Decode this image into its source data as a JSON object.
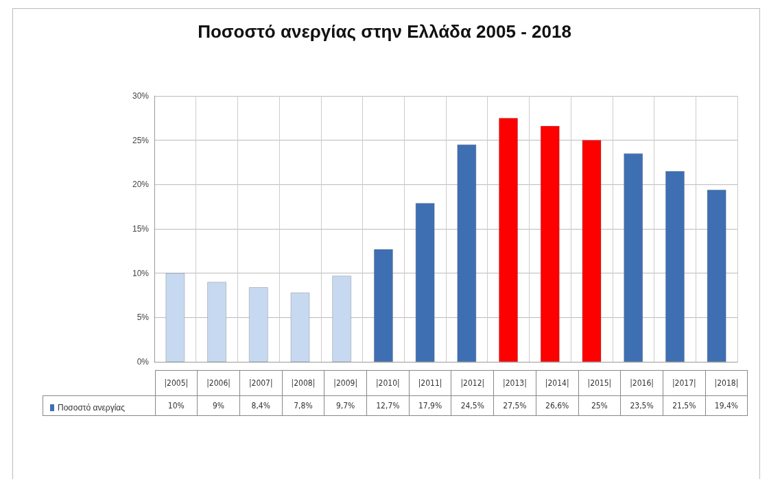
{
  "chart_data": {
    "type": "bar",
    "title": "Ποσοστό ανεργίας στην Ελλάδα 2005 - 2018",
    "categories": [
      "|2005|",
      "|2006|",
      "|2007|",
      "|2008|",
      "|2009|",
      "|2010|",
      "|2011|",
      "|2012|",
      "|2013|",
      "|2014|",
      "|2015|",
      "|2016|",
      "|2017|",
      "|2018|"
    ],
    "series": [
      {
        "name": "Ποσοστό ανεργίας",
        "color": "#3f6fb3",
        "values": [
          10,
          9,
          8.4,
          7.8,
          9.7,
          12.7,
          17.9,
          24.5,
          27.5,
          26.6,
          25,
          23.5,
          21.5,
          19.4
        ],
        "colors": [
          "#c6d9f1",
          "#c6d9f1",
          "#c6d9f1",
          "#c6d9f1",
          "#c6d9f1",
          "#3f6fb3",
          "#3f6fb3",
          "#3f6fb3",
          "#ff0000",
          "#ff0000",
          "#ff0000",
          "#3f6fb3",
          "#3f6fb3",
          "#3f6fb3"
        ],
        "value_labels": [
          "10%",
          "9%",
          "8,4%",
          "7,8%",
          "9,7%",
          "12,7%",
          "17,9%",
          "24,5%",
          "27,5%",
          "26,6%",
          "25%",
          "23,5%",
          "21,5%",
          "19,4%"
        ]
      }
    ],
    "ylim": [
      0,
      30
    ],
    "yticks": [
      {
        "value": 0,
        "label": "0%"
      },
      {
        "value": 5,
        "label": "5%"
      },
      {
        "value": 10,
        "label": "10%"
      },
      {
        "value": 15,
        "label": "15%"
      },
      {
        "value": 20,
        "label": "20%"
      },
      {
        "value": 25,
        "label": "25%"
      },
      {
        "value": 30,
        "label": "30%"
      }
    ],
    "grid": true,
    "legend": "bottom left"
  }
}
